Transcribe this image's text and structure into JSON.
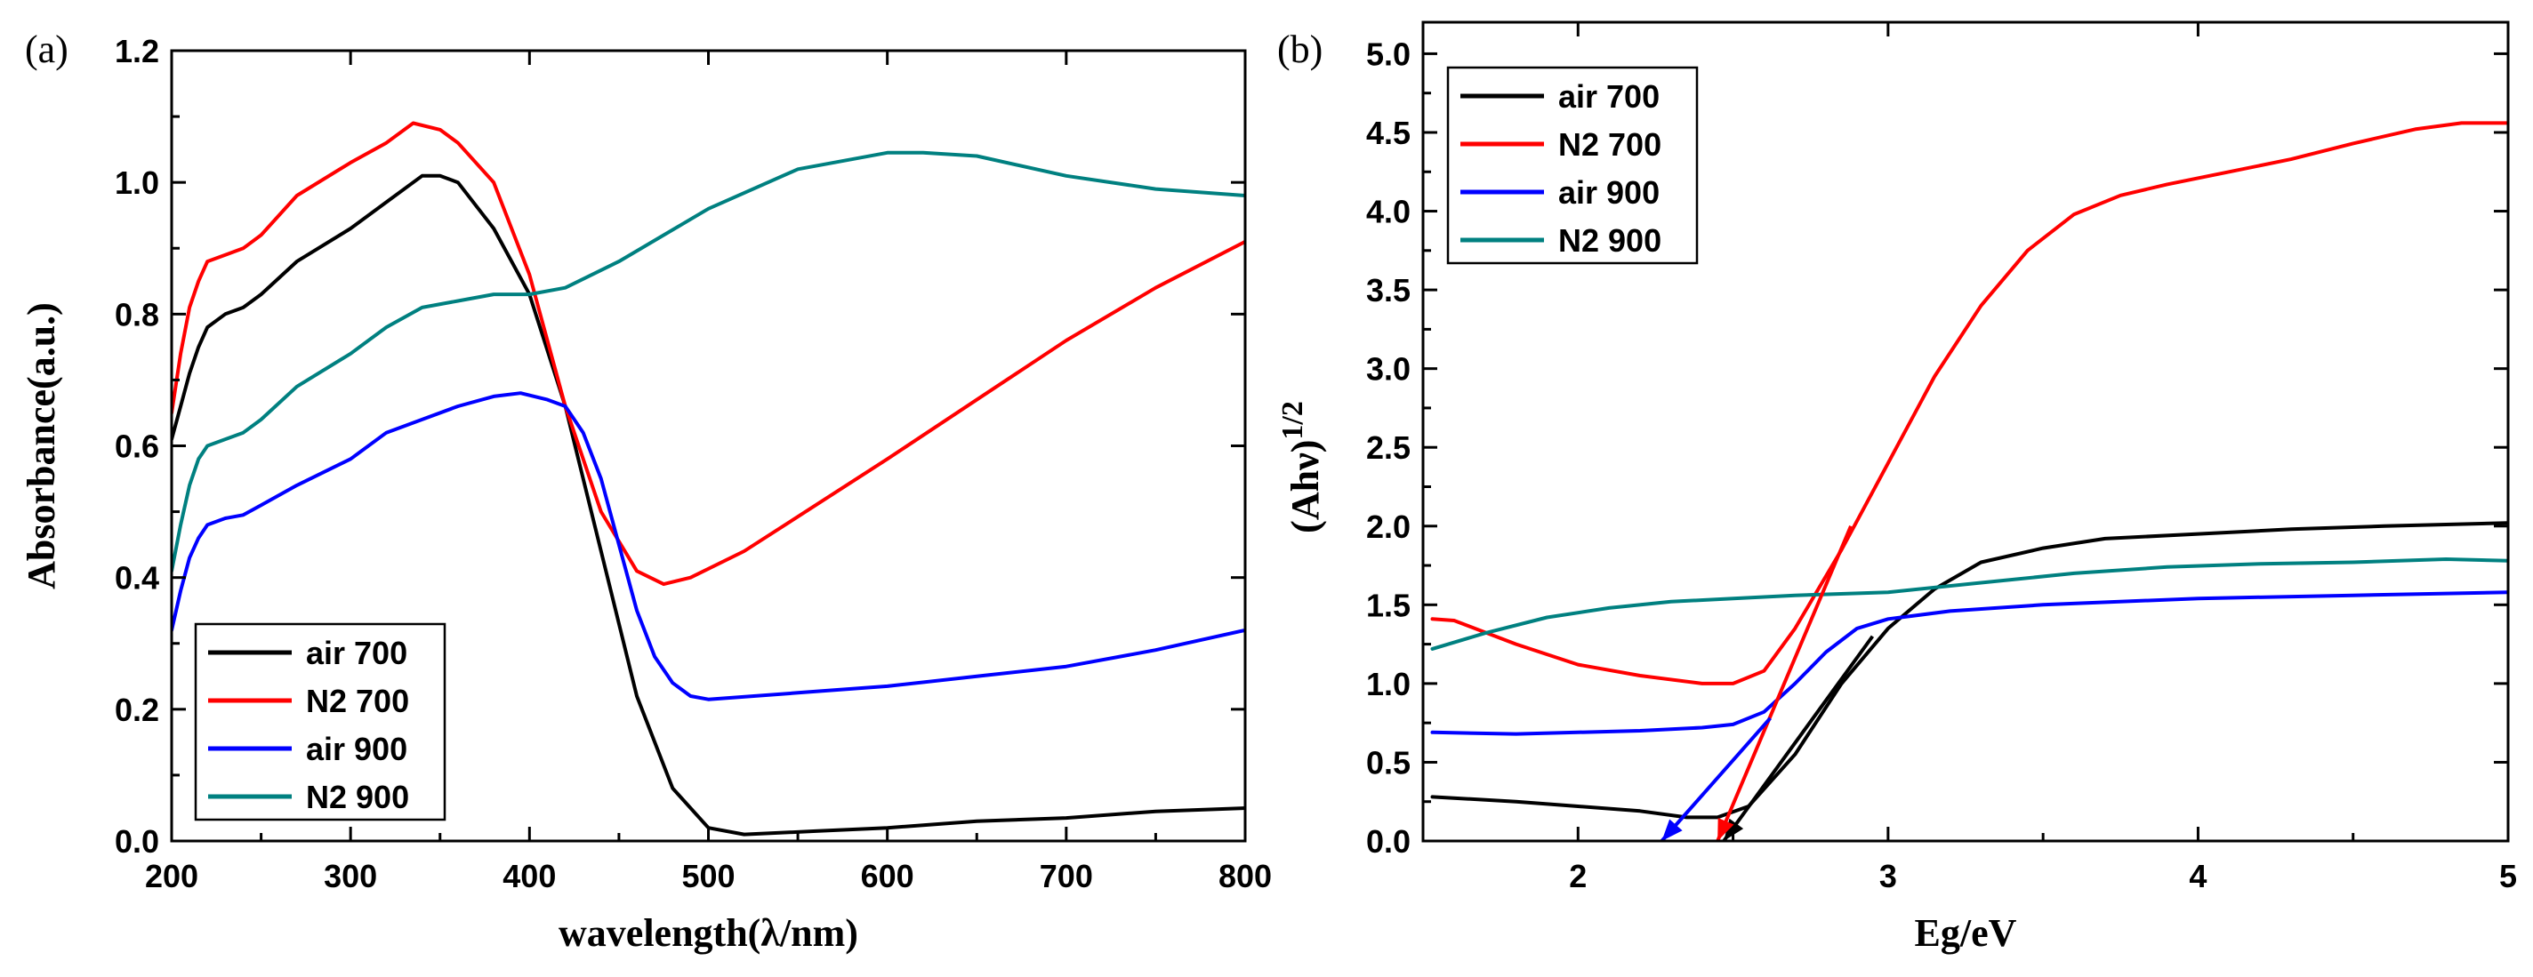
{
  "colors": {
    "air 700": "#000000",
    "N2 700": "#ff0000",
    "air 900": "#0000ff",
    "N2 900": "#008080"
  },
  "chart_data": [
    {
      "panel": "(a)",
      "type": "line",
      "xlabel": "wavelength(λ/nm)",
      "ylabel": "Absorbance(a.u.)",
      "xlim": [
        200,
        800
      ],
      "ylim": [
        0.0,
        1.2
      ],
      "xticks": [
        "200",
        "300",
        "400",
        "500",
        "600",
        "700",
        "800"
      ],
      "yticks": [
        "0.0",
        "0.2",
        "0.4",
        "0.6",
        "0.8",
        "1.0",
        "1.2"
      ],
      "legend_position": "bottom-left",
      "grid": false,
      "series": [
        {
          "name": "air 700",
          "x": [
            200,
            205,
            210,
            215,
            220,
            230,
            240,
            250,
            270,
            300,
            320,
            340,
            350,
            360,
            380,
            400,
            420,
            440,
            460,
            480,
            500,
            520,
            560,
            600,
            650,
            700,
            750,
            800
          ],
          "y": [
            0.61,
            0.66,
            0.71,
            0.75,
            0.78,
            0.8,
            0.81,
            0.83,
            0.88,
            0.93,
            0.97,
            1.01,
            1.01,
            1.0,
            0.93,
            0.83,
            0.66,
            0.44,
            0.22,
            0.08,
            0.02,
            0.01,
            0.015,
            0.02,
            0.03,
            0.035,
            0.045,
            0.05
          ]
        },
        {
          "name": "N2 700",
          "x": [
            200,
            205,
            210,
            215,
            220,
            230,
            240,
            250,
            270,
            300,
            320,
            335,
            350,
            360,
            380,
            400,
            420,
            440,
            460,
            475,
            490,
            520,
            560,
            600,
            650,
            700,
            750,
            800
          ],
          "y": [
            0.65,
            0.74,
            0.81,
            0.85,
            0.88,
            0.89,
            0.9,
            0.92,
            0.98,
            1.03,
            1.06,
            1.09,
            1.08,
            1.06,
            1.0,
            0.86,
            0.66,
            0.5,
            0.41,
            0.39,
            0.4,
            0.44,
            0.51,
            0.58,
            0.67,
            0.76,
            0.84,
            0.91
          ]
        },
        {
          "name": "air 900",
          "x": [
            200,
            205,
            210,
            215,
            220,
            230,
            240,
            250,
            270,
            300,
            320,
            340,
            360,
            380,
            395,
            410,
            420,
            430,
            440,
            450,
            460,
            470,
            480,
            490,
            500,
            550,
            600,
            650,
            700,
            750,
            800
          ],
          "y": [
            0.32,
            0.38,
            0.43,
            0.46,
            0.48,
            0.49,
            0.495,
            0.51,
            0.54,
            0.58,
            0.62,
            0.64,
            0.66,
            0.675,
            0.68,
            0.67,
            0.66,
            0.62,
            0.55,
            0.45,
            0.35,
            0.28,
            0.24,
            0.22,
            0.215,
            0.225,
            0.235,
            0.25,
            0.265,
            0.29,
            0.32
          ]
        },
        {
          "name": "N2 900",
          "x": [
            200,
            205,
            210,
            215,
            220,
            230,
            240,
            250,
            270,
            300,
            320,
            340,
            360,
            380,
            400,
            420,
            450,
            500,
            550,
            600,
            620,
            650,
            700,
            750,
            800
          ],
          "y": [
            0.41,
            0.48,
            0.54,
            0.58,
            0.6,
            0.61,
            0.62,
            0.64,
            0.69,
            0.74,
            0.78,
            0.81,
            0.82,
            0.83,
            0.83,
            0.84,
            0.88,
            0.96,
            1.02,
            1.045,
            1.045,
            1.04,
            1.01,
            0.99,
            0.98
          ]
        }
      ]
    },
    {
      "panel": "(b)",
      "type": "line",
      "xlabel": "Eg/eV",
      "ylabel": "(Ahν)^1/2",
      "ylabel_main": "(Ahν)",
      "ylabel_sup": "1/2",
      "xlim": [
        1.5,
        5.0
      ],
      "ylim": [
        0.0,
        5.2
      ],
      "xticks": [
        "2",
        "3",
        "4",
        "5"
      ],
      "xtick_values": [
        2,
        3,
        4,
        5
      ],
      "yticks": [
        "0.0",
        "0.5",
        "1.0",
        "1.5",
        "2.0",
        "2.5",
        "3.0",
        "3.5",
        "4.0",
        "4.5",
        "5.0"
      ],
      "legend_position": "top-left",
      "grid": false,
      "series": [
        {
          "name": "air 700",
          "x": [
            1.53,
            1.8,
            2.0,
            2.2,
            2.35,
            2.45,
            2.55,
            2.7,
            2.85,
            3.0,
            3.15,
            3.3,
            3.5,
            3.7,
            4.0,
            4.3,
            4.6,
            5.0
          ],
          "y": [
            0.28,
            0.25,
            0.22,
            0.19,
            0.15,
            0.15,
            0.22,
            0.55,
            1.0,
            1.35,
            1.6,
            1.77,
            1.86,
            1.92,
            1.95,
            1.98,
            2.0,
            2.02
          ]
        },
        {
          "name": "N2 700",
          "x": [
            1.53,
            1.6,
            1.8,
            2.0,
            2.2,
            2.4,
            2.5,
            2.6,
            2.7,
            2.85,
            3.0,
            3.15,
            3.3,
            3.45,
            3.6,
            3.75,
            3.9,
            4.1,
            4.3,
            4.5,
            4.7,
            4.85,
            5.0
          ],
          "y": [
            1.41,
            1.4,
            1.25,
            1.12,
            1.05,
            1.0,
            1.0,
            1.08,
            1.35,
            1.85,
            2.4,
            2.95,
            3.4,
            3.75,
            3.98,
            4.1,
            4.17,
            4.25,
            4.33,
            4.43,
            4.52,
            4.56,
            4.56
          ]
        },
        {
          "name": "air 900",
          "x": [
            1.53,
            1.8,
            2.0,
            2.2,
            2.4,
            2.5,
            2.6,
            2.7,
            2.8,
            2.9,
            3.0,
            3.2,
            3.5,
            4.0,
            4.5,
            5.0
          ],
          "y": [
            0.69,
            0.68,
            0.69,
            0.7,
            0.72,
            0.74,
            0.82,
            1.0,
            1.2,
            1.35,
            1.41,
            1.46,
            1.5,
            1.54,
            1.56,
            1.58
          ]
        },
        {
          "name": "N2 900",
          "x": [
            1.53,
            1.7,
            1.9,
            2.1,
            2.3,
            2.5,
            2.7,
            3.0,
            3.3,
            3.6,
            3.9,
            4.2,
            4.5,
            4.8,
            5.0
          ],
          "y": [
            1.22,
            1.32,
            1.42,
            1.48,
            1.52,
            1.54,
            1.56,
            1.58,
            1.64,
            1.7,
            1.74,
            1.76,
            1.77,
            1.79,
            1.78
          ]
        }
      ],
      "annotations": [
        {
          "name": "air 700",
          "from": [
            2.95,
            1.3
          ],
          "to": [
            2.47,
            0.0
          ]
        },
        {
          "name": "N2 700",
          "from": [
            2.88,
            2.0
          ],
          "to": [
            2.45,
            0.0
          ]
        },
        {
          "name": "air 900",
          "from": [
            2.62,
            0.78
          ],
          "to": [
            2.27,
            0.0
          ]
        }
      ]
    }
  ]
}
